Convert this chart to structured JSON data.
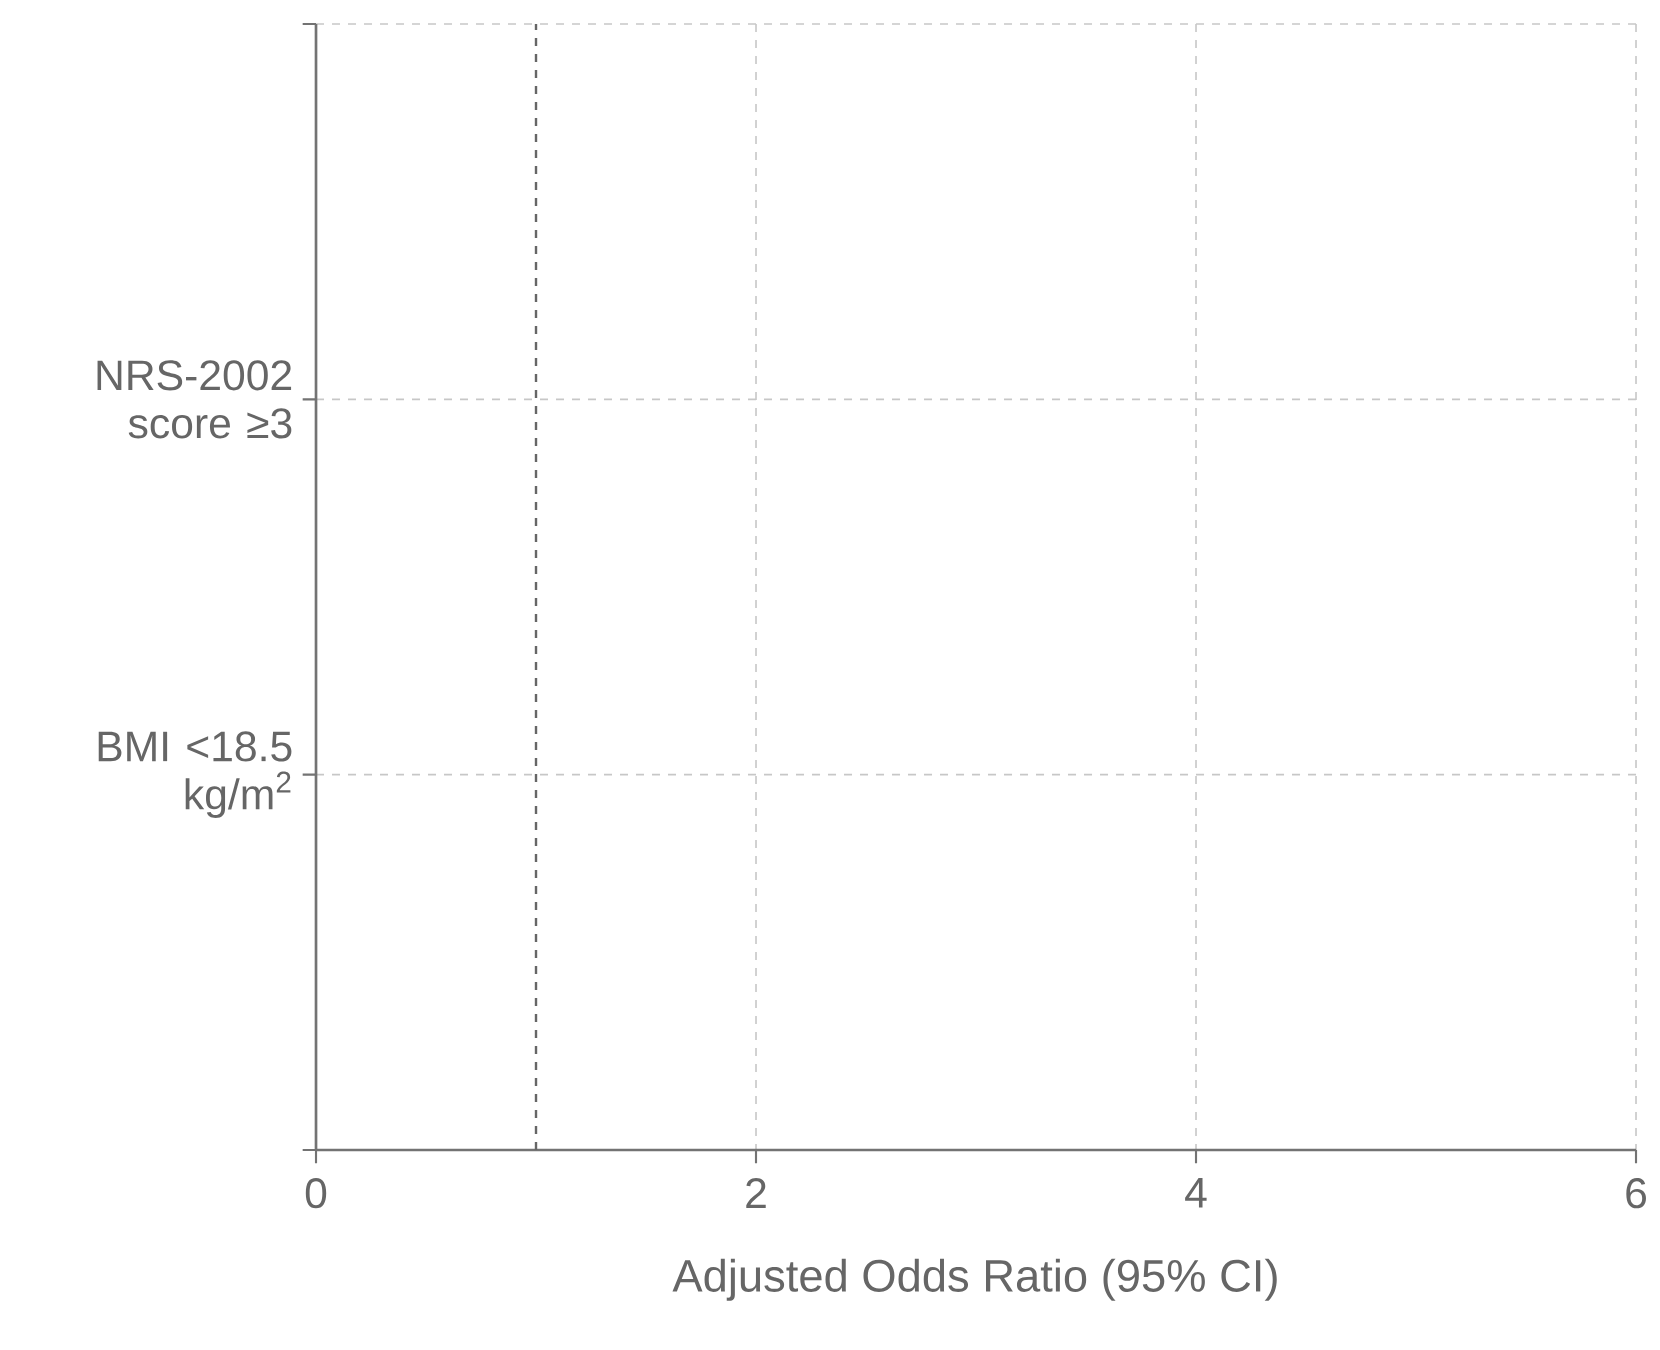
{
  "chart_data": {
    "type": "scatter",
    "orientation": "horizontal",
    "categories": [
      "NRS-2002 score ≥3",
      "BMI <18.5 kg/m$^{2}$"
    ],
    "values": [
      null,
      null
    ],
    "xlabel": "Adjusted Odds Ratio (95% CI)",
    "xlim": [
      0,
      6
    ],
    "xticks": [
      0,
      2,
      4,
      6
    ],
    "grid": true,
    "ref_lines": [
      {
        "axis": "x",
        "value": 1,
        "line_style": "dashed",
        "color": "#666666"
      }
    ]
  }
}
